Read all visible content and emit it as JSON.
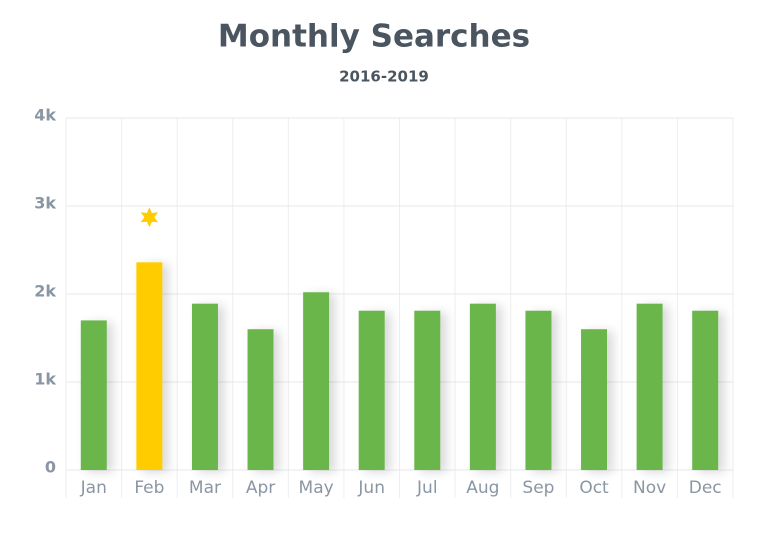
{
  "chart_data": {
    "type": "bar",
    "title": "Monthly Searches",
    "subtitle": "2016-2019",
    "categories": [
      "Jan",
      "Feb",
      "Mar",
      "Apr",
      "May",
      "Jun",
      "Jul",
      "Aug",
      "Sep",
      "Oct",
      "Nov",
      "Dec"
    ],
    "values": [
      1700,
      2360,
      1890,
      1600,
      2020,
      1810,
      1810,
      1890,
      1810,
      1600,
      1890,
      1810
    ],
    "color": "#6ab64c",
    "colors": [
      "#6ab64c",
      "#ffcc00",
      "#6ab64c",
      "#6ab64c",
      "#6ab64c",
      "#6ab64c",
      "#6ab64c",
      "#6ab64c",
      "#6ab64c",
      "#6ab64c",
      "#6ab64c",
      "#6ab64c"
    ],
    "ylim": [
      0,
      4000
    ],
    "yticks": [
      0,
      {
        "value": 1000,
        "label": "1k"
      },
      {
        "value": 2000,
        "label": "2k"
      },
      {
        "value": 3000,
        "label": "3k"
      },
      {
        "value": 4000,
        "label": "4k"
      }
    ],
    "grid": true
  }
}
